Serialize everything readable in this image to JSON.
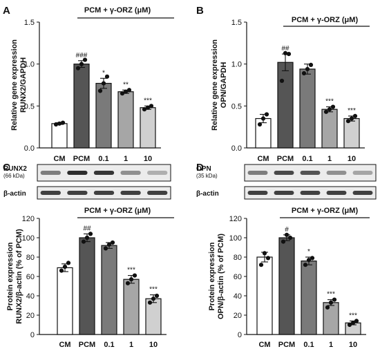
{
  "chart_data": [
    {
      "type": "bar",
      "panel_letter": "A",
      "group_label": "PCM + γ-ORZ (μM)",
      "ylabel_lines": [
        "Relative gene expression",
        "RUNX2/GAPDH"
      ],
      "categories": [
        "CM",
        "PCM",
        "0.1",
        "1",
        "10"
      ],
      "values": [
        0.29,
        1.0,
        0.77,
        0.67,
        0.48
      ],
      "errors": [
        0.01,
        0.04,
        0.06,
        0.02,
        0.02
      ],
      "points": [
        [
          0.28,
          0.29,
          0.3
        ],
        [
          0.95,
          1.0,
          1.05
        ],
        [
          0.68,
          0.77,
          0.85
        ],
        [
          0.65,
          0.67,
          0.69
        ],
        [
          0.46,
          0.48,
          0.5
        ]
      ],
      "significance": [
        "",
        "###",
        "*",
        "**",
        "***"
      ],
      "ylim": [
        0,
        1.5
      ],
      "yticks": [
        0.0,
        0.5,
        1.0,
        1.5
      ],
      "ytick_labels": [
        "0.0",
        "0.5",
        "1.0",
        "1.5"
      ],
      "fills": [
        "#ffffff",
        "#555555",
        "#7a7a7a",
        "#a6a6a6",
        "#d0d0d0"
      ]
    },
    {
      "type": "bar",
      "panel_letter": "B",
      "group_label": "PCM + γ-ORZ (μM)",
      "ylabel_lines": [
        "Relative gene expression",
        "OPN/GAPDH"
      ],
      "categories": [
        "CM",
        "PCM",
        "0.1",
        "1",
        "10"
      ],
      "values": [
        0.35,
        1.02,
        0.94,
        0.46,
        0.35
      ],
      "errors": [
        0.05,
        0.1,
        0.06,
        0.03,
        0.03
      ],
      "points": [
        [
          0.28,
          0.35,
          0.4
        ],
        [
          0.8,
          1.13,
          1.12
        ],
        [
          0.89,
          0.94,
          0.99
        ],
        [
          0.43,
          0.46,
          0.49
        ],
        [
          0.32,
          0.35,
          0.38
        ]
      ],
      "significance": [
        "",
        "##",
        "",
        "***",
        "***"
      ],
      "ylim": [
        0,
        1.5
      ],
      "yticks": [
        0.0,
        0.5,
        1.0,
        1.5
      ],
      "ytick_labels": [
        "0.0",
        "0.5",
        "1.0",
        "1.5"
      ],
      "fills": [
        "#ffffff",
        "#555555",
        "#7a7a7a",
        "#a6a6a6",
        "#d0d0d0"
      ]
    },
    {
      "type": "bar",
      "panel_letter": "C",
      "group_label": "PCM + γ-ORZ (μM)",
      "ylabel_lines": [
        "Protein expression",
        "RUNX2/β-actin (% of PCM)"
      ],
      "categories": [
        "CM",
        "PCM",
        "0.1",
        "1",
        "10"
      ],
      "values": [
        69,
        100,
        92,
        57,
        37
      ],
      "errors": [
        4,
        4,
        3,
        4,
        4
      ],
      "points": [
        [
          66,
          70,
          74
        ],
        [
          96,
          100,
          104
        ],
        [
          89,
          93,
          95
        ],
        [
          53,
          57,
          61
        ],
        [
          33,
          37,
          40
        ]
      ],
      "significance": [
        "",
        "##",
        "",
        "***",
        "***"
      ],
      "ylim": [
        0,
        120
      ],
      "yticks": [
        0,
        20,
        40,
        60,
        80,
        100,
        120
      ],
      "ytick_labels": [
        "0",
        "20",
        "40",
        "60",
        "80",
        "100",
        "120"
      ],
      "fills": [
        "#ffffff",
        "#555555",
        "#7a7a7a",
        "#a6a6a6",
        "#d0d0d0"
      ],
      "blot_labels": [
        "RUNX2",
        "(66 kDa)",
        "β-actin"
      ]
    },
    {
      "type": "bar",
      "panel_letter": "D",
      "group_label": "PCM + γ-ORZ (μM)",
      "ylabel_lines": [
        "Protein expression",
        "OPN/β-actin (% of PCM)"
      ],
      "categories": [
        "CM",
        "PCM",
        "0.1",
        "1",
        "10"
      ],
      "values": [
        80,
        100,
        76,
        33,
        12
      ],
      "errors": [
        5,
        3,
        4,
        3,
        2
      ],
      "points": [
        [
          72,
          84,
          79
        ],
        [
          96,
          103,
          100
        ],
        [
          72,
          77,
          79
        ],
        [
          28,
          33,
          36
        ],
        [
          10,
          12,
          14
        ]
      ],
      "significance": [
        "",
        "#",
        "*",
        "***",
        "***"
      ],
      "ylim": [
        0,
        120
      ],
      "yticks": [
        0,
        20,
        40,
        60,
        80,
        100,
        120
      ],
      "ytick_labels": [
        "0",
        "20",
        "40",
        "60",
        "80",
        "100",
        "120"
      ],
      "fills": [
        "#ffffff",
        "#555555",
        "#7a7a7a",
        "#a6a6a6",
        "#d0d0d0"
      ],
      "blot_labels": [
        "OPN",
        "(35 kDa)",
        "β-actin"
      ]
    }
  ]
}
